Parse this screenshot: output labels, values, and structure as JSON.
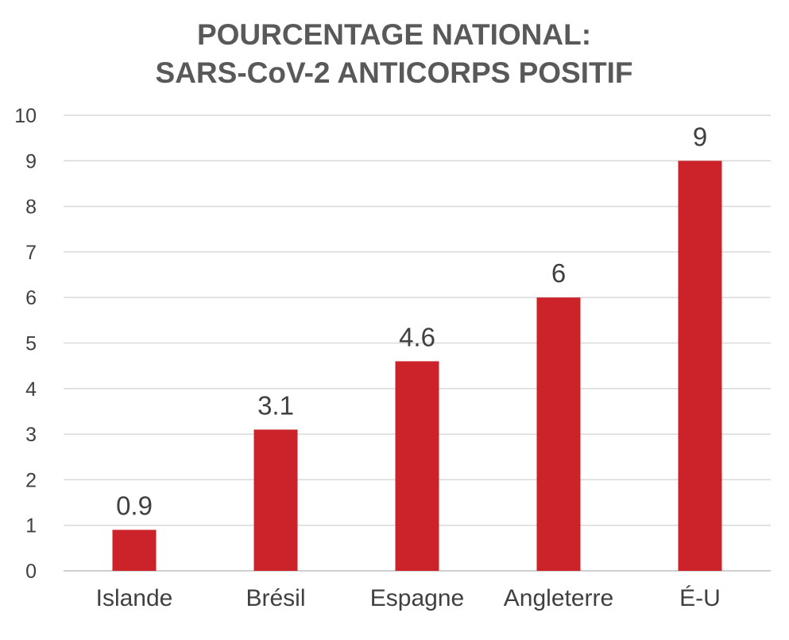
{
  "chart_data": {
    "type": "bar",
    "title": [
      "POURCENTAGE NATIONAL:",
      "SARS-CoV-2 ANTICORPS POSITIF"
    ],
    "categories": [
      "Islande",
      "Brésil",
      "Espagne",
      "Angleterre",
      "É-U"
    ],
    "values": [
      0.9,
      3.1,
      4.6,
      6,
      9
    ],
    "data_labels": [
      "0.9",
      "3.1",
      "4.6",
      "6",
      "9"
    ],
    "xlabel": "",
    "ylabel": "",
    "ylim": [
      0,
      10
    ],
    "yticks": [
      0,
      1,
      2,
      3,
      4,
      5,
      6,
      7,
      8,
      9,
      10
    ],
    "grid": true,
    "legend": "none",
    "bar_color": "#cc2229"
  }
}
